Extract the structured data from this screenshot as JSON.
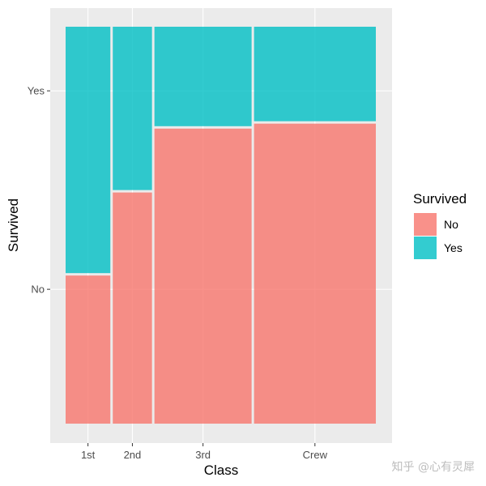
{
  "chart_data": {
    "type": "mosaic",
    "xlabel": "Class",
    "ylabel": "Survived",
    "categories": [
      "1st",
      "2nd",
      "3rd",
      "Crew"
    ],
    "category_totals": [
      325,
      285,
      706,
      885
    ],
    "levels": [
      "No",
      "Yes"
    ],
    "series": [
      {
        "name": "No",
        "values": [
          122,
          167,
          528,
          673
        ]
      },
      {
        "name": "Yes",
        "values": [
          203,
          118,
          178,
          212
        ]
      }
    ],
    "y_ticks": [
      "No",
      "Yes"
    ],
    "legend": {
      "title": "Survived",
      "position": "right",
      "entries": [
        "No",
        "Yes"
      ]
    },
    "colors": {
      "No": "#F8766D",
      "Yes": "#00BFC4",
      "panel": "#EBEBEB",
      "grid": "#FFFFFF"
    },
    "grid": true
  },
  "watermark": "知乎 @心有灵犀"
}
